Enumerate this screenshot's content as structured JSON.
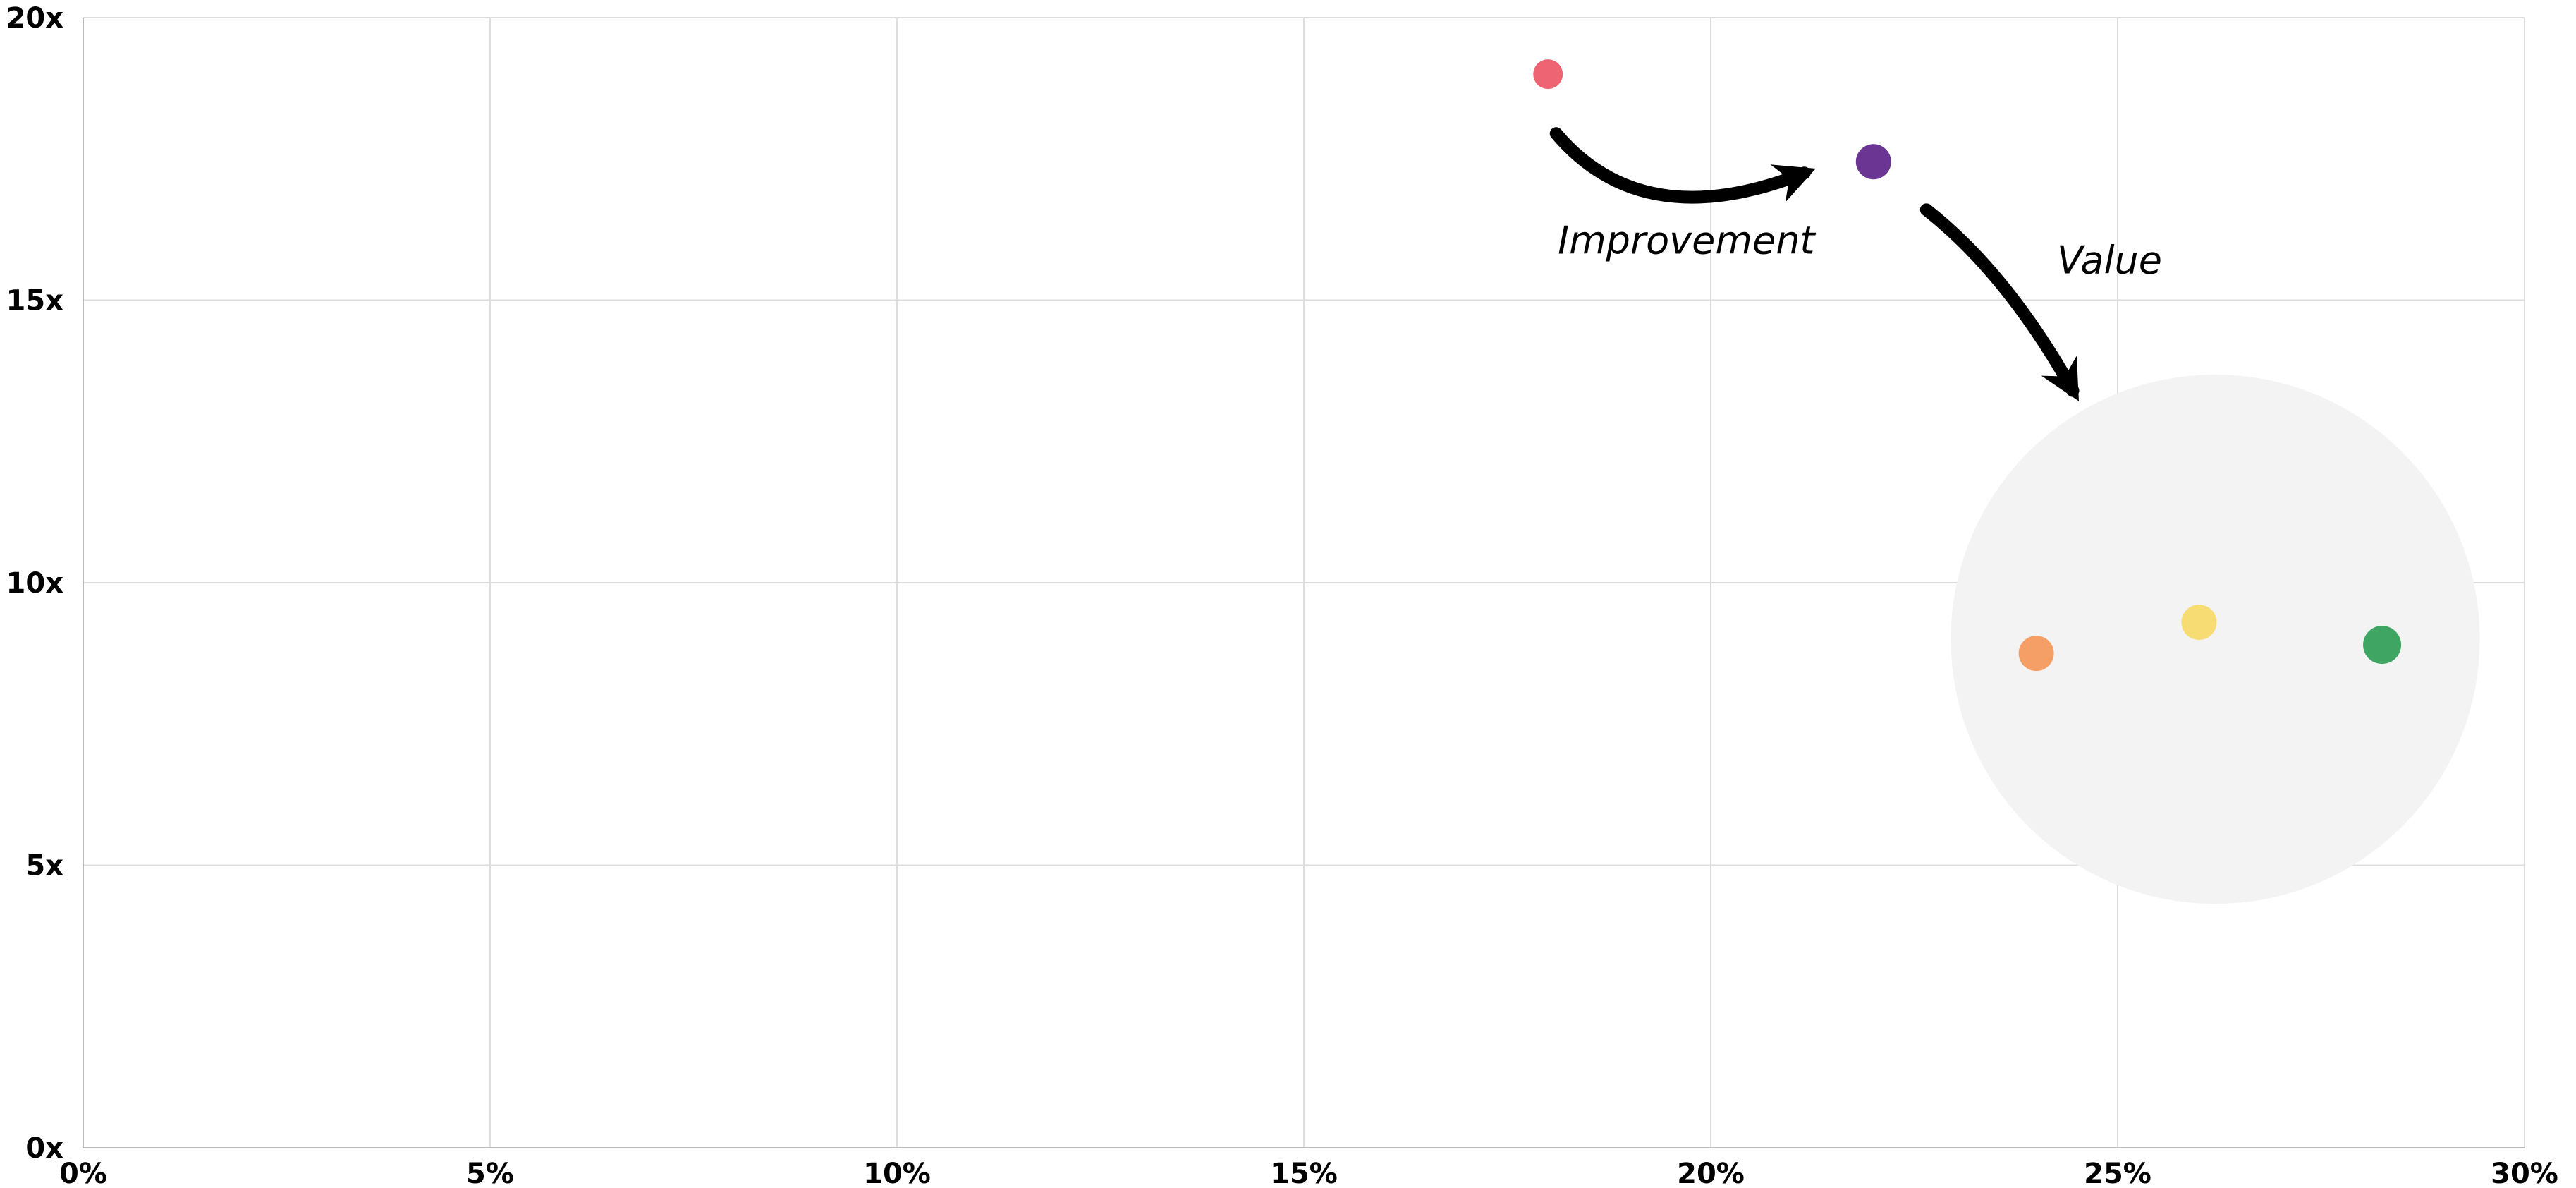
{
  "chart_data": {
    "type": "scatter",
    "title": "",
    "xlabel": "",
    "ylabel": "",
    "xlim": [
      0,
      30
    ],
    "ylim": [
      0,
      20
    ],
    "x_ticks": [
      0,
      5,
      10,
      15,
      20,
      25,
      30
    ],
    "x_tick_labels": [
      "0%",
      "5%",
      "10%",
      "15%",
      "20%",
      "25%",
      "30%"
    ],
    "y_ticks": [
      0,
      5,
      10,
      15,
      20
    ],
    "y_tick_labels": [
      "0x",
      "5x",
      "10x",
      "15x",
      "20x"
    ],
    "grid": true,
    "points": [
      {
        "x": 18.0,
        "y": 19.0,
        "color": "#ee6472"
      },
      {
        "x": 22.0,
        "y": 17.45,
        "color": "#6b3593"
      },
      {
        "x": 24.0,
        "y": 8.75,
        "color": "#f59f66"
      },
      {
        "x": 26.0,
        "y": 9.3,
        "color": "#f6dc72"
      },
      {
        "x": 28.25,
        "y": 8.9,
        "color": "#3ea562"
      }
    ],
    "highlight_region": {
      "center_x": 26.2,
      "center_y": 9.0,
      "radius_x": 3.25,
      "color": "#f3f3f3"
    },
    "annotations": [
      {
        "text": "Improvement",
        "x": 19.7,
        "y": 16.05
      },
      {
        "text": "Value",
        "x": 24.9,
        "y": 15.7
      }
    ],
    "arrows": [
      {
        "from": [
          18.1,
          17.95
        ],
        "to": [
          21.15,
          17.25
        ]
      },
      {
        "from": [
          22.65,
          16.6
        ],
        "to": [
          24.45,
          13.4
        ]
      }
    ]
  }
}
